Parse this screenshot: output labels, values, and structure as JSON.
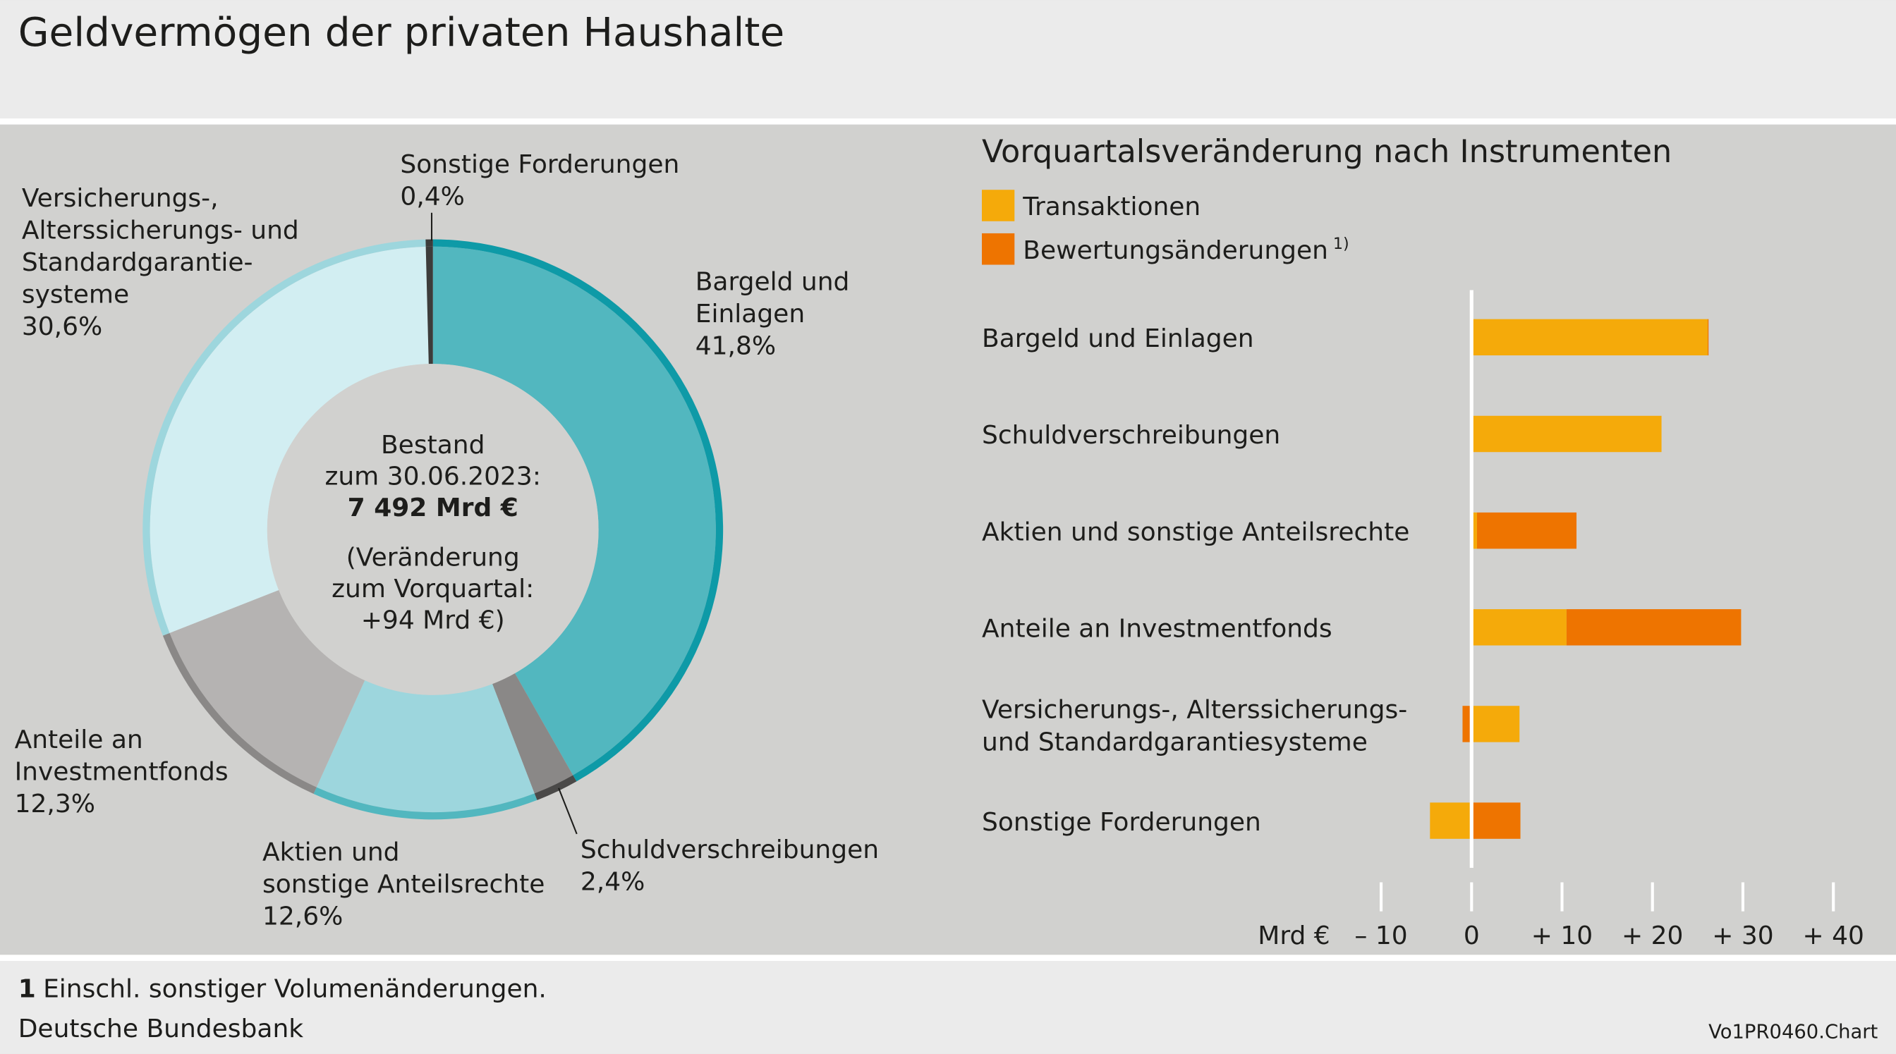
{
  "title": "Geldvermögen der privaten Haushalte",
  "footnote": {
    "marker": "1",
    "text": "Einschl. sonstiger Volumenänderungen."
  },
  "source": "Deutsche Bundesbank",
  "chart_id": "Vo1PR0460.Chart",
  "colors": {
    "transaktionen": "#f5aa0a",
    "bewertung": "#ee7400"
  },
  "chart_data": [
    {
      "type": "pie",
      "variant": "donut",
      "center_text": {
        "line1": "Bestand",
        "line2": "zum 30.06.2023:",
        "line3": "7 492 Mrd €",
        "line4": "(Veränderung",
        "line5": "zum Vorquartal:",
        "line6": "+94 Mrd €)"
      },
      "slices": [
        {
          "label_lines": [
            "Bargeld und",
            "Einlagen"
          ],
          "value_label": "41,8%",
          "value": 41.8,
          "fill": "#52b7bf",
          "rim": "#0e9aa7"
        },
        {
          "label_lines": [
            "Schuldverschreibungen"
          ],
          "value_label": "2,4%",
          "value": 2.4,
          "fill": "#8a8887",
          "rim": "#4a4948"
        },
        {
          "label_lines": [
            "Aktien und",
            "sonstige Anteilsrechte"
          ],
          "value_label": "12,6%",
          "value": 12.6,
          "fill": "#9dd6dd",
          "rim": "#52b7bf"
        },
        {
          "label_lines": [
            "Anteile an",
            "Investmentfonds"
          ],
          "value_label": "12,3%",
          "value": 12.3,
          "fill": "#b5b3b2",
          "rim": "#8a8887"
        },
        {
          "label_lines": [
            "Versicherungs-,",
            "Alterssicherungs- und",
            "Standardgarantie-",
            "systeme"
          ],
          "value_label": "30,6%",
          "value": 30.6,
          "fill": "#d2eef2",
          "rim": "#9dd6dd"
        },
        {
          "label_lines": [
            "Sonstige Forderungen"
          ],
          "value_label": "0,4%",
          "value": 0.4,
          "fill": "#3c3c3b",
          "rim": "#3c3c3b"
        }
      ]
    },
    {
      "type": "bar",
      "orientation": "horizontal",
      "stacked": true,
      "title": "Vorquartalsveränderung nach Instrumenten",
      "legend": [
        {
          "label": "Transaktionen"
        },
        {
          "label": "Bewertungsänderungen",
          "sup": "1)"
        }
      ],
      "categories": [
        [
          "Bargeld und Einlagen"
        ],
        [
          "Schuldverschreibungen"
        ],
        [
          "Aktien und sonstige Anteilsrechte"
        ],
        [
          "Anteile an Investmentfonds"
        ],
        [
          "Versicherungs-, Alterssicherungs-",
          "und Standardgarantiesysteme"
        ],
        [
          "Sonstige Forderungen"
        ]
      ],
      "series": [
        {
          "name": "Transaktionen",
          "values": [
            26.1,
            21.0,
            0.6,
            10.5,
            5.3,
            -4.6
          ]
        },
        {
          "name": "Bewertungsänderungen",
          "values": [
            0.1,
            0.0,
            11.0,
            19.3,
            -1.0,
            5.4
          ]
        }
      ],
      "xlabel": "Mrd €",
      "xlim": [
        -10,
        40
      ],
      "ticks": [
        {
          "v": -10,
          "label": "– 10"
        },
        {
          "v": 0,
          "label": "0"
        },
        {
          "v": 10,
          "label": "+ 10"
        },
        {
          "v": 20,
          "label": "+ 20"
        },
        {
          "v": 30,
          "label": "+ 30"
        },
        {
          "v": 40,
          "label": "+ 40"
        }
      ]
    }
  ]
}
